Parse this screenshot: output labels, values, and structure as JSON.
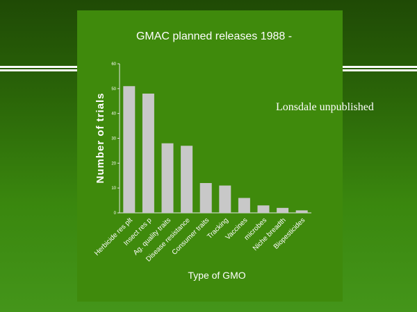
{
  "colors": {
    "background": "#2a6408",
    "panel": "#3f8a0c",
    "bar": "#c8c8c8",
    "text": "#ffffff",
    "axis": "#e6e6e6"
  },
  "attribution": "Lonsdale unpublished",
  "chart_data": {
    "type": "bar",
    "title": "GMAC planned releases 1988 -",
    "xlabel": "Type of GMO",
    "ylabel": "Number of trials",
    "ylim": [
      0,
      60
    ],
    "yticks": [
      0,
      10,
      20,
      30,
      40,
      50,
      60
    ],
    "grid": false,
    "categories": [
      "Herbicide res plt",
      "Insect res p",
      "Ag. quality traits",
      "Disease resistance",
      "Consumer traits",
      "Tracking",
      "Vaccines",
      "microbes",
      "Niche breadth",
      "Biopesticides"
    ],
    "values": [
      51,
      48,
      28,
      27,
      12,
      11,
      6,
      3,
      2,
      1
    ]
  }
}
